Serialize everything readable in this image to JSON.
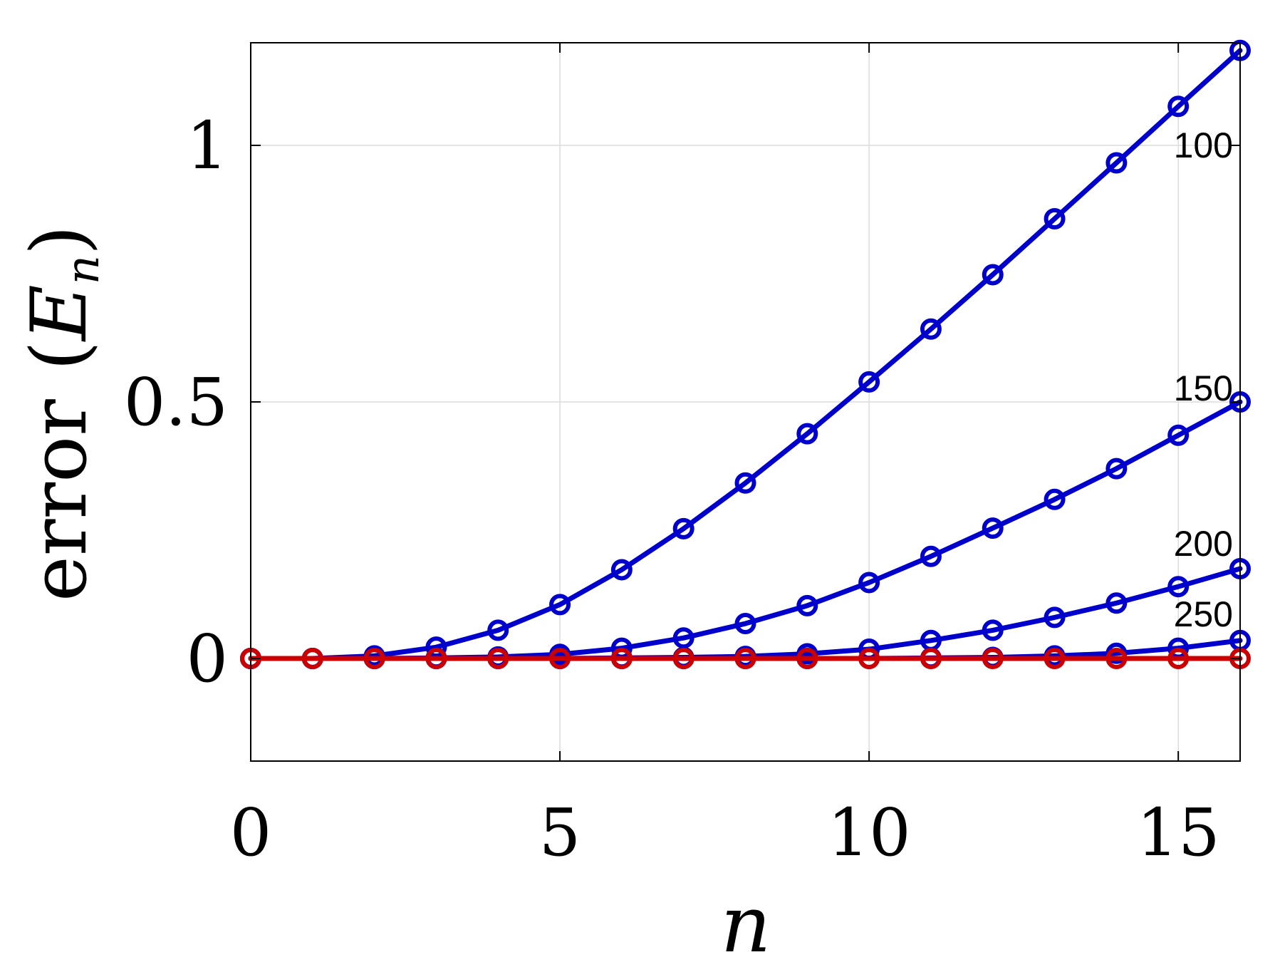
{
  "colors": {
    "series_blue": "#0000cc",
    "series_red": "#cc0000",
    "grid": "#dcdcdc",
    "axis": "#000000"
  },
  "chart_data": {
    "type": "line",
    "xlabel": "n",
    "ylabel": {
      "text": "error",
      "symbol": "E",
      "subscript": "n"
    },
    "xlim": [
      0,
      16
    ],
    "ylim": [
      -0.2,
      1.2
    ],
    "xticks": [
      0,
      5,
      10,
      15
    ],
    "xtick_labels": [
      "0",
      "5",
      "10",
      "15"
    ],
    "yticks": [
      0,
      0.5,
      1
    ],
    "ytick_labels": [
      "0",
      "0.5",
      "1"
    ],
    "grid": true,
    "x": [
      0,
      1,
      2,
      3,
      4,
      5,
      6,
      7,
      8,
      9,
      10,
      11,
      12,
      13,
      14,
      15,
      16
    ],
    "series": [
      {
        "name": "100",
        "color": "#0000cc",
        "marker": "circle",
        "values": [
          0,
          0,
          0.005,
          0.022,
          0.055,
          0.105,
          0.173,
          0.253,
          0.342,
          0.438,
          0.539,
          0.642,
          0.748,
          0.857,
          0.966,
          1.076,
          1.185
        ]
      },
      {
        "name": "150",
        "color": "#0000cc",
        "marker": "circle",
        "values": [
          0,
          0,
          0,
          0.001,
          0.003,
          0.008,
          0.02,
          0.04,
          0.068,
          0.103,
          0.148,
          0.199,
          0.254,
          0.31,
          0.37,
          0.435,
          0.5
        ]
      },
      {
        "name": "200",
        "color": "#0000cc",
        "marker": "circle",
        "values": [
          0,
          0,
          0,
          0,
          0,
          0,
          0.001,
          0.002,
          0.004,
          0.009,
          0.018,
          0.035,
          0.055,
          0.08,
          0.108,
          0.14,
          0.175
        ]
      },
      {
        "name": "250",
        "color": "#0000cc",
        "marker": "circle",
        "values": [
          0,
          0,
          0,
          0,
          0,
          0,
          0,
          0,
          0,
          0,
          0,
          0.001,
          0.002,
          0.005,
          0.01,
          0.02,
          0.035
        ]
      },
      {
        "color": "#cc0000",
        "marker": "circle",
        "values": [
          0,
          0,
          0,
          0,
          0,
          0,
          0,
          0,
          0,
          0,
          0,
          0,
          0,
          0,
          0,
          0,
          0
        ]
      }
    ]
  }
}
